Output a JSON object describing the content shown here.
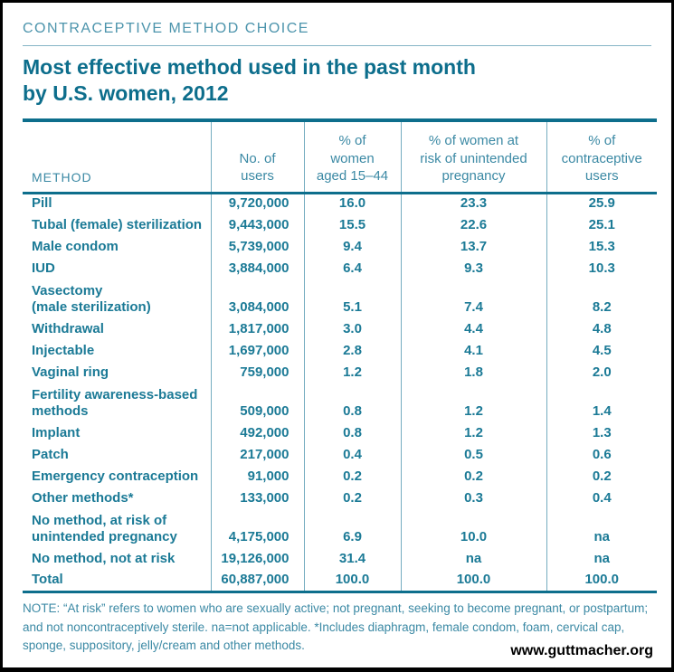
{
  "header": {
    "kicker": "CONTRACEPTIVE METHOD CHOICE",
    "title_line1": "Most effective method used in the past month",
    "title_line2": "by U.S. women, 2012"
  },
  "colors": {
    "teal_dark": "#0d6e8c",
    "teal_data": "#1b7a96",
    "teal_light": "#4c94ac",
    "divider": "#76adc0",
    "border": "#000000"
  },
  "table": {
    "method_header": "METHOD",
    "col_headers": [
      "No. of\nusers",
      "% of\nwomen\naged 15–44",
      "% of women at\nrisk of unintended\npregnancy",
      "% of\ncontraceptive\nusers"
    ],
    "rows": [
      {
        "method_lines": [
          "Pill"
        ],
        "users": "9,720,000",
        "pct_women": "16.0",
        "pct_at_risk": "23.3",
        "pct_contraceptive_users": "25.9"
      },
      {
        "method_lines": [
          "Tubal (female) sterilization"
        ],
        "users": "9,443,000",
        "pct_women": "15.5",
        "pct_at_risk": "22.6",
        "pct_contraceptive_users": "25.1"
      },
      {
        "method_lines": [
          "Male condom"
        ],
        "users": "5,739,000",
        "pct_women": "9.4",
        "pct_at_risk": "13.7",
        "pct_contraceptive_users": "15.3"
      },
      {
        "method_lines": [
          "IUD"
        ],
        "users": "3,884,000",
        "pct_women": "6.4",
        "pct_at_risk": "9.3",
        "pct_contraceptive_users": "10.3"
      },
      {
        "method_lines": [
          "Vasectomy",
          "(male sterilization)"
        ],
        "users": "3,084,000",
        "pct_women": "5.1",
        "pct_at_risk": "7.4",
        "pct_contraceptive_users": "8.2"
      },
      {
        "method_lines": [
          "Withdrawal"
        ],
        "users": "1,817,000",
        "pct_women": "3.0",
        "pct_at_risk": "4.4",
        "pct_contraceptive_users": "4.8"
      },
      {
        "method_lines": [
          "Injectable"
        ],
        "users": "1,697,000",
        "pct_women": "2.8",
        "pct_at_risk": "4.1",
        "pct_contraceptive_users": "4.5"
      },
      {
        "method_lines": [
          "Vaginal ring"
        ],
        "users": "759,000",
        "pct_women": "1.2",
        "pct_at_risk": "1.8",
        "pct_contraceptive_users": "2.0"
      },
      {
        "method_lines": [
          "Fertility awareness-based",
          "methods"
        ],
        "users": "509,000",
        "pct_women": "0.8",
        "pct_at_risk": "1.2",
        "pct_contraceptive_users": "1.4"
      },
      {
        "method_lines": [
          "Implant"
        ],
        "users": "492,000",
        "pct_women": "0.8",
        "pct_at_risk": "1.2",
        "pct_contraceptive_users": "1.3"
      },
      {
        "method_lines": [
          "Patch"
        ],
        "users": "217,000",
        "pct_women": "0.4",
        "pct_at_risk": "0.5",
        "pct_contraceptive_users": "0.6"
      },
      {
        "method_lines": [
          "Emergency contraception"
        ],
        "users": "91,000",
        "pct_women": "0.2",
        "pct_at_risk": "0.2",
        "pct_contraceptive_users": "0.2"
      },
      {
        "method_lines": [
          "Other methods*"
        ],
        "users": "133,000",
        "pct_women": "0.2",
        "pct_at_risk": "0.3",
        "pct_contraceptive_users": "0.4"
      },
      {
        "method_lines": [
          "No method, at risk of",
          "unintended pregnancy"
        ],
        "users": "4,175,000",
        "pct_women": "6.9",
        "pct_at_risk": "10.0",
        "pct_contraceptive_users": "na"
      },
      {
        "method_lines": [
          "No method, not at risk"
        ],
        "users": "19,126,000",
        "pct_women": "31.4",
        "pct_at_risk": "na",
        "pct_contraceptive_users": "na"
      },
      {
        "method_lines": [
          "Total"
        ],
        "users": "60,887,000",
        "pct_women": "100.0",
        "pct_at_risk": "100.0",
        "pct_contraceptive_users": "100.0"
      }
    ]
  },
  "note": "NOTE: “At risk” refers to women who are sexually active; not pregnant, seeking to become pregnant, or postpartum; and not noncontraceptively sterile. na=not applicable. *Includes diaphragm, female condom, foam, cervical cap, sponge, suppository, jelly/cream and other methods.",
  "footer": {
    "website": "www.guttmacher.org"
  },
  "chart_data": {
    "type": "table",
    "title": "Most effective method used in the past month by U.S. women, 2012",
    "columns": [
      "Method",
      "No. of users",
      "% of women aged 15–44",
      "% of women at risk of unintended pregnancy",
      "% of contraceptive users"
    ],
    "rows": [
      [
        "Pill",
        "9,720,000",
        "16.0",
        "23.3",
        "25.9"
      ],
      [
        "Tubal (female) sterilization",
        "9,443,000",
        "15.5",
        "22.6",
        "25.1"
      ],
      [
        "Male condom",
        "5,739,000",
        "9.4",
        "13.7",
        "15.3"
      ],
      [
        "IUD",
        "3,884,000",
        "6.4",
        "9.3",
        "10.3"
      ],
      [
        "Vasectomy (male sterilization)",
        "3,084,000",
        "5.1",
        "7.4",
        "8.2"
      ],
      [
        "Withdrawal",
        "1,817,000",
        "3.0",
        "4.4",
        "4.8"
      ],
      [
        "Injectable",
        "1,697,000",
        "2.8",
        "4.1",
        "4.5"
      ],
      [
        "Vaginal ring",
        "759,000",
        "1.2",
        "1.8",
        "2.0"
      ],
      [
        "Fertility awareness-based methods",
        "509,000",
        "0.8",
        "1.2",
        "1.4"
      ],
      [
        "Implant",
        "492,000",
        "0.8",
        "1.2",
        "1.3"
      ],
      [
        "Patch",
        "217,000",
        "0.4",
        "0.5",
        "0.6"
      ],
      [
        "Emergency contraception",
        "91,000",
        "0.2",
        "0.2",
        "0.2"
      ],
      [
        "Other methods*",
        "133,000",
        "0.2",
        "0.3",
        "0.4"
      ],
      [
        "No method, at risk of unintended pregnancy",
        "4,175,000",
        "6.9",
        "10.0",
        "na"
      ],
      [
        "No method, not at risk",
        "19,126,000",
        "31.4",
        "na",
        "na"
      ],
      [
        "Total",
        "60,887,000",
        "100.0",
        "100.0",
        "100.0"
      ]
    ]
  }
}
